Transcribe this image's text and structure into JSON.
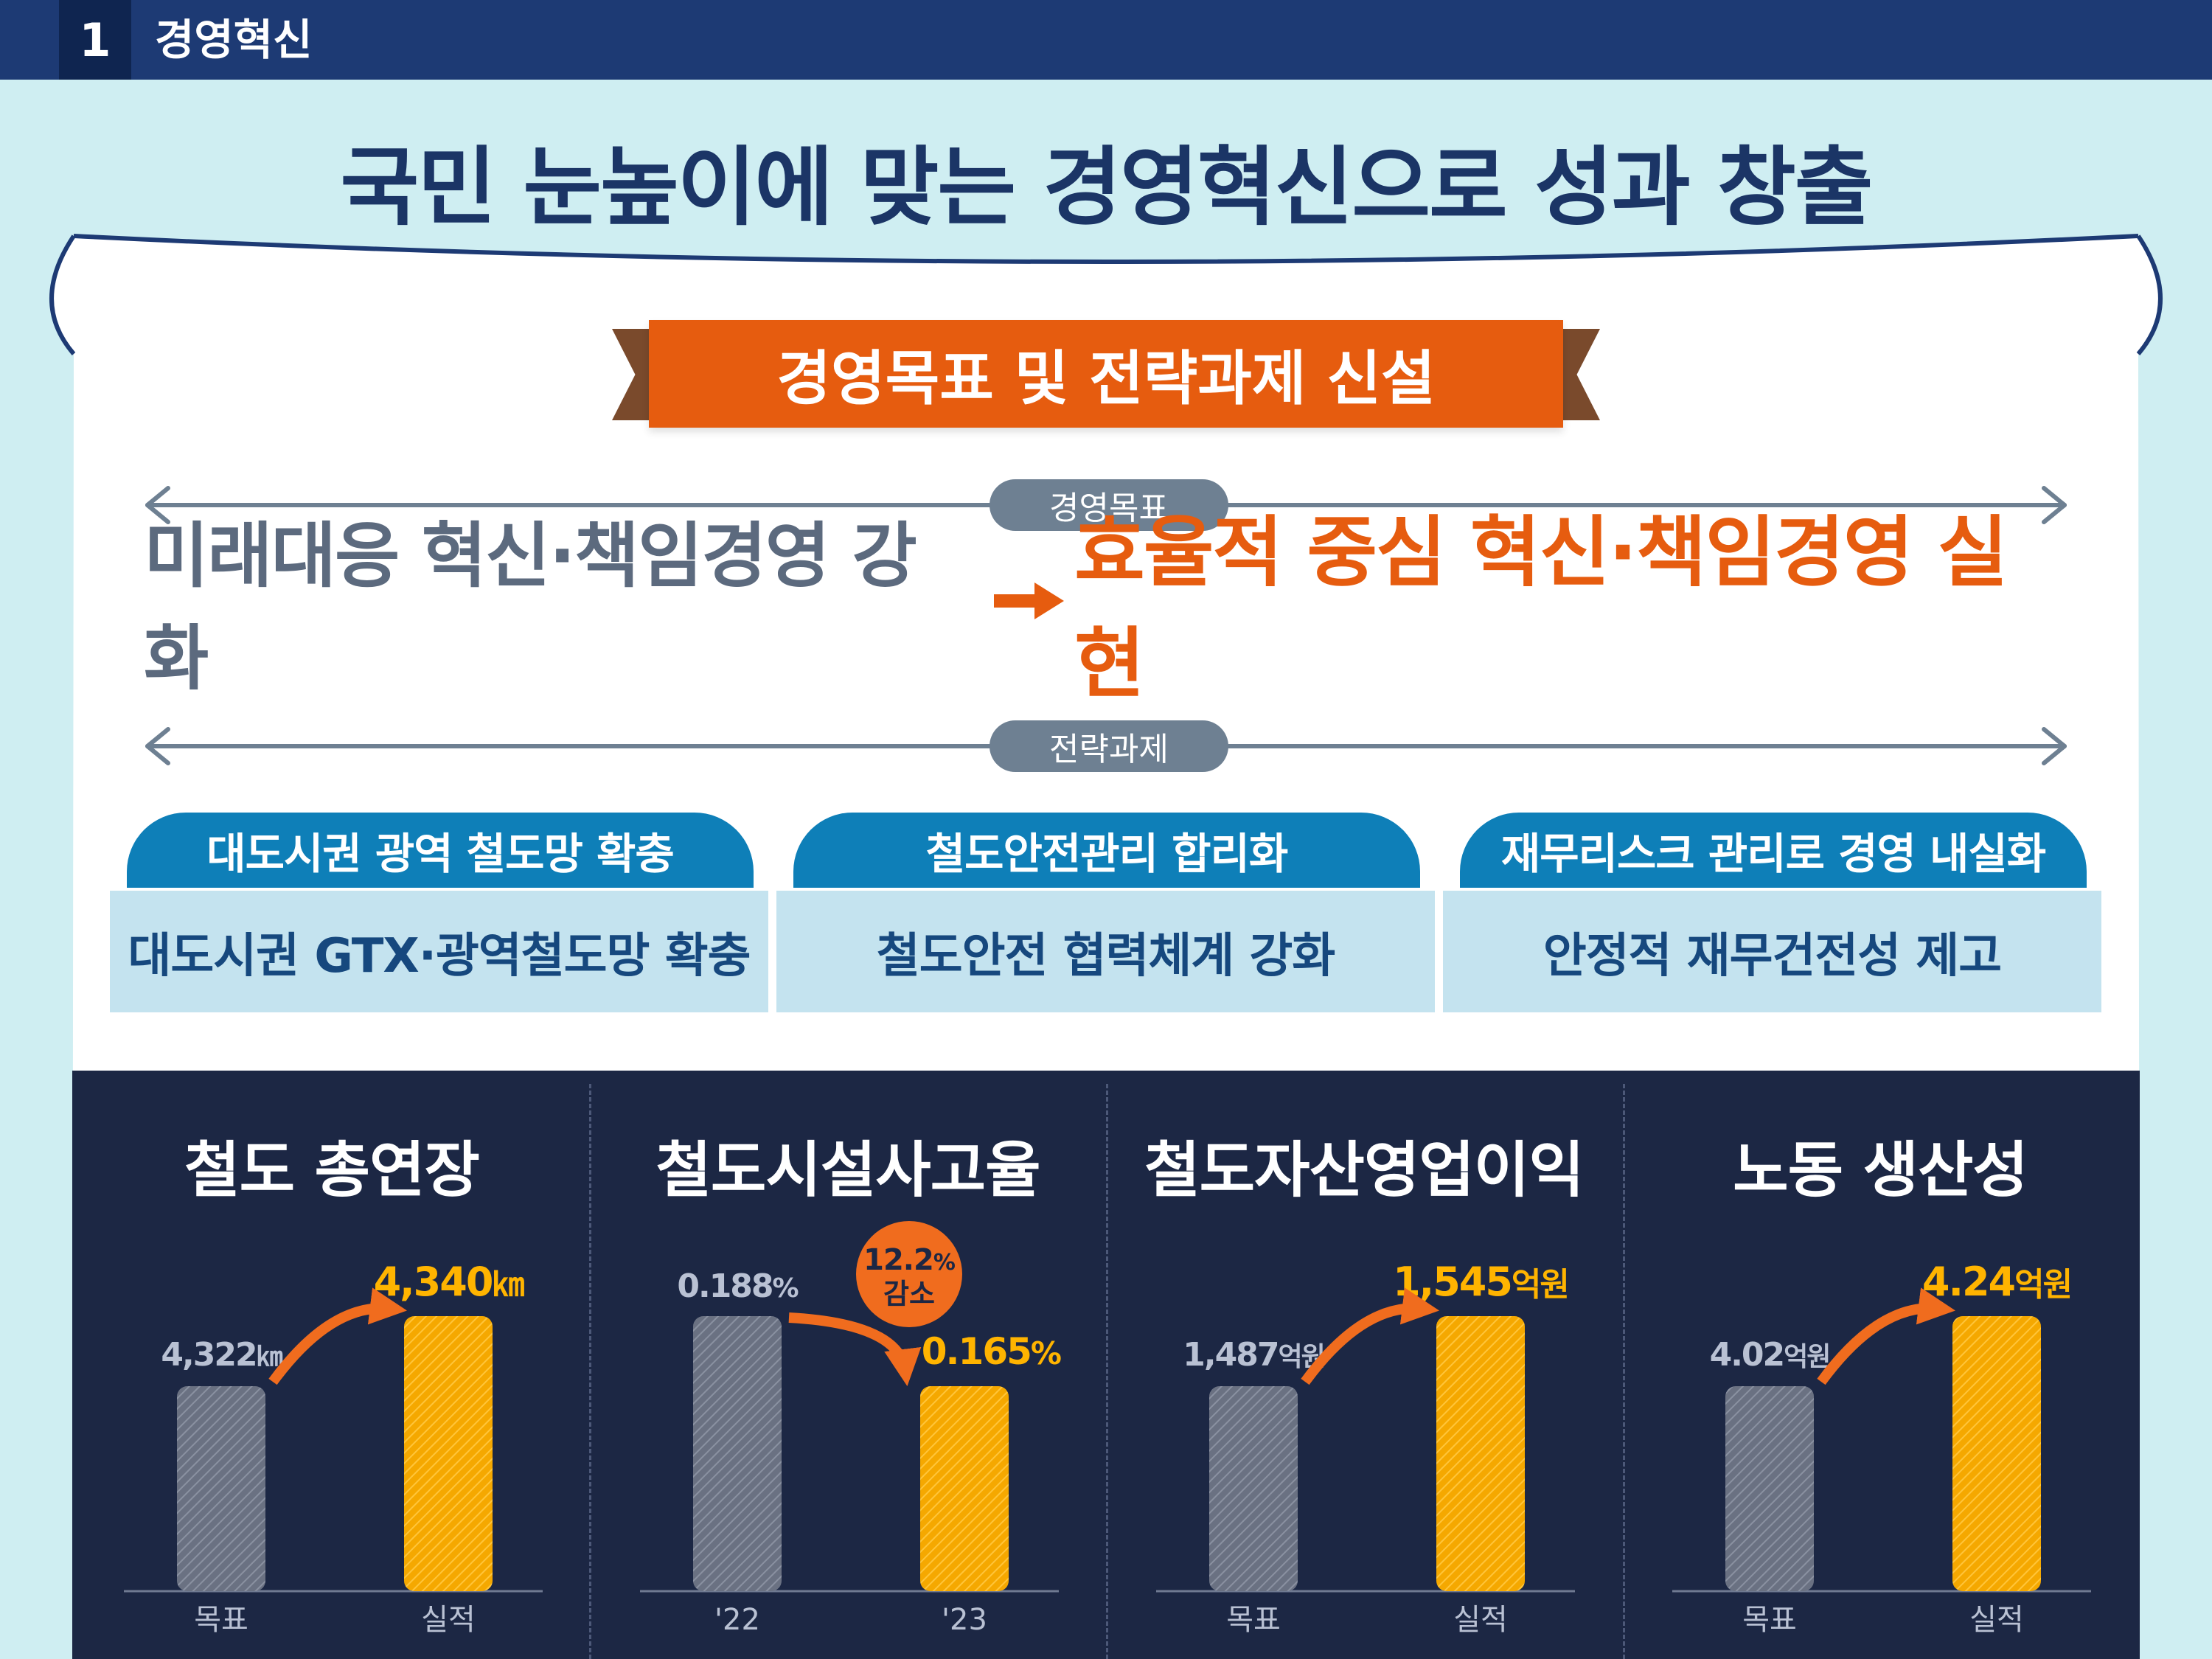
{
  "header": {
    "number": "1",
    "title": "경영혁신"
  },
  "main_title": "국민 눈높이에 맞는 경영혁신으로 성과 창출",
  "ribbon": "경영목표 및 전략과제 신설",
  "goal": {
    "pill": "경영목표",
    "old": "미래대응 혁신·책임경영 강화",
    "new": "효율적 중심 혁신·책임경영 실현"
  },
  "tasks": {
    "pill": "전략과제",
    "items": [
      {
        "head": "대도시권 광역 철도망 확충",
        "body": "대도시권 GTX·광역철도망 확충"
      },
      {
        "head": "철도안전관리 합리화",
        "body": "철도안전 협력체계 강화"
      },
      {
        "head": "재무리스크 관리로 경영 내실화",
        "body": "안정적 재무건전성 제고"
      }
    ]
  },
  "colors": {
    "header": "#1d3a74",
    "orange": "#e65c0f",
    "panel": "#1c2744",
    "bar_before": "#6a7182",
    "bar_after": "#f5a800",
    "task_head": "#0e7fb8",
    "task_body": "#c4e3ef"
  },
  "chart_data": [
    {
      "type": "bar",
      "title": "철도 총연장",
      "categories": [
        "목표",
        "실적"
      ],
      "values": [
        4322,
        4340
      ],
      "value_labels": [
        {
          "num": "4,322",
          "unit": "㎞"
        },
        {
          "num": "4,340",
          "unit": "㎞"
        }
      ]
    },
    {
      "type": "bar",
      "title": "철도시설사고율",
      "categories": [
        "'22",
        "'23"
      ],
      "values": [
        0.188,
        0.165
      ],
      "value_labels": [
        {
          "num": "0.188",
          "unit": "%"
        },
        {
          "num": "0.165",
          "unit": "%"
        }
      ],
      "annotation": {
        "line1_num": "12.2",
        "line1_unit": "%",
        "line2": "감소"
      }
    },
    {
      "type": "bar",
      "title": "철도자산영업이익",
      "categories": [
        "목표",
        "실적"
      ],
      "values": [
        1487,
        1545
      ],
      "value_labels": [
        {
          "num": "1,487",
          "unit": "억원"
        },
        {
          "num": "1,545",
          "unit": "억원"
        }
      ]
    },
    {
      "type": "bar",
      "title": "노동 생산성",
      "categories": [
        "목표",
        "실적"
      ],
      "values": [
        4.02,
        4.24
      ],
      "value_labels": [
        {
          "num": "4.02",
          "unit": "억원"
        },
        {
          "num": "4.24",
          "unit": "억원"
        }
      ]
    }
  ]
}
